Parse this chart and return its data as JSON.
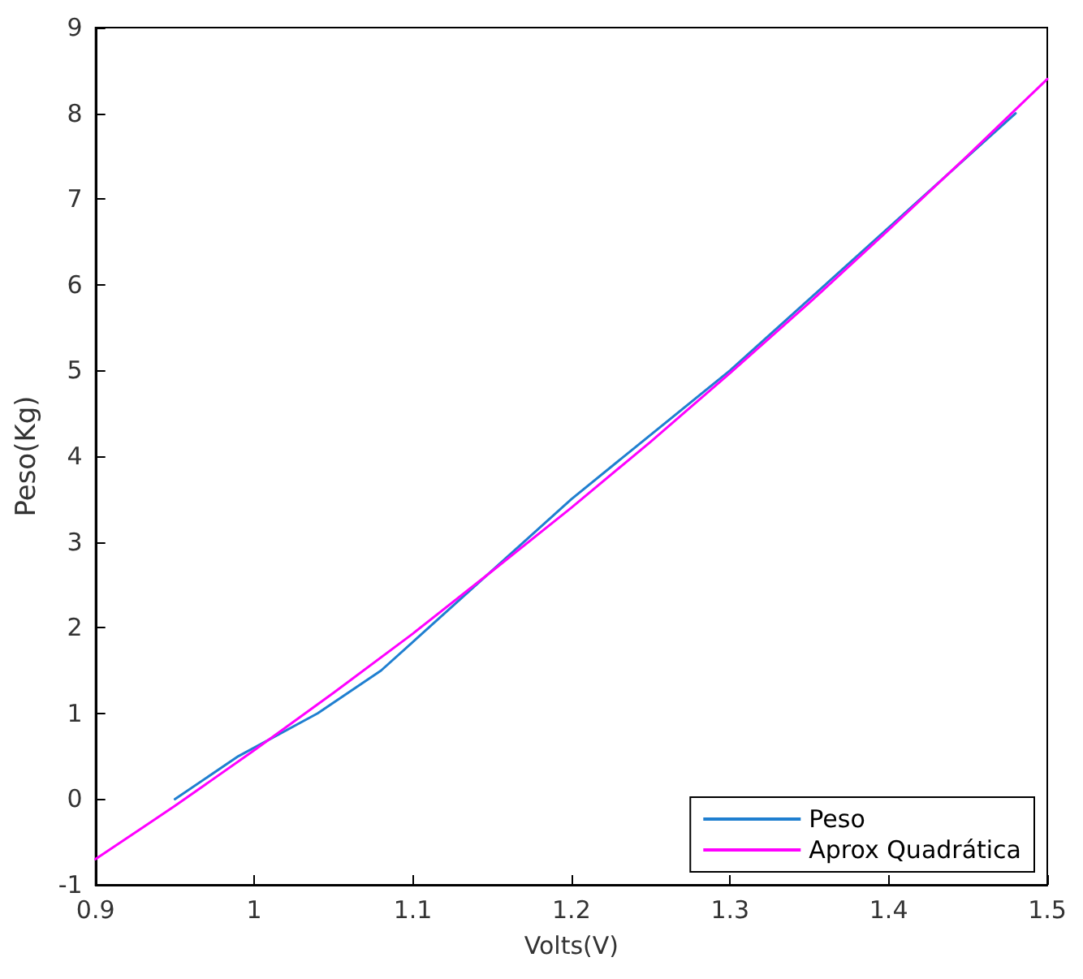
{
  "chart_data": {
    "type": "line",
    "xlabel": "Volts(V)",
    "ylabel": "Peso(Kg)",
    "xlim": [
      0.9,
      1.5
    ],
    "xticks": [
      0.9,
      1,
      1.1,
      1.2,
      1.3,
      1.4,
      1.5
    ],
    "ylim": [
      -1,
      9
    ],
    "yticks": [
      -1,
      0,
      1,
      2,
      3,
      4,
      5,
      6,
      7,
      8,
      9
    ],
    "grid": false,
    "legend": "bottom right",
    "marker": "none",
    "line_style": "solid",
    "series": [
      {
        "name": "Peso",
        "color": "#1f7fd0",
        "x": [
          0.95,
          0.99,
          1.04,
          1.08,
          1.2,
          1.3,
          1.48
        ],
        "values": [
          0,
          0.5,
          1.0,
          1.5,
          3.5,
          5.0,
          8.0
        ]
      },
      {
        "name": "Aprox Quadrática",
        "color": "#ff00ff",
        "x": [
          0.9,
          0.95,
          1.0,
          1.05,
          1.1,
          1.15,
          1.2,
          1.25,
          1.3,
          1.35,
          1.4,
          1.45,
          1.5
        ],
        "values": [
          -0.7,
          -0.08,
          0.57,
          1.24,
          1.93,
          2.66,
          3.4,
          4.17,
          4.97,
          5.79,
          6.64,
          7.51,
          8.4
        ]
      }
    ]
  }
}
